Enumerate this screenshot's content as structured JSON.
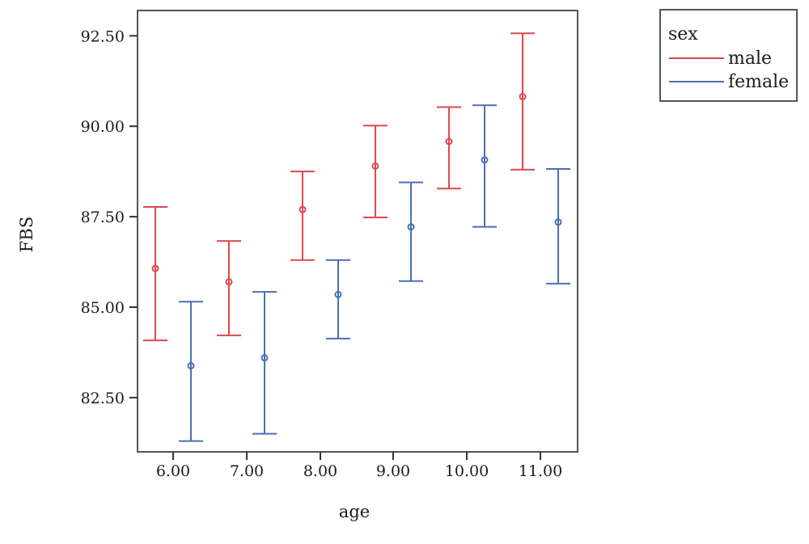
{
  "chart_data": {
    "type": "errorbar",
    "xlabel": "age",
    "ylabel": "FBS",
    "ylim": [
      81.0,
      93.2
    ],
    "categories": [
      "6.00",
      "7.00",
      "8.00",
      "9.00",
      "10.00",
      "11.00"
    ],
    "y_ticks": [
      "92.50",
      "90.00",
      "87.50",
      "85.00",
      "82.50"
    ],
    "y_tick_values": [
      92.5,
      90.0,
      87.5,
      85.0,
      82.5
    ],
    "legend": {
      "title": "sex",
      "placement": "top-right, outside plot"
    },
    "series": [
      {
        "name": "male",
        "color": "#e0474c",
        "points": [
          {
            "x": "6.00",
            "mean": 86.07,
            "lower": 84.08,
            "upper": 87.77
          },
          {
            "x": "7.00",
            "mean": 85.7,
            "lower": 84.22,
            "upper": 86.83
          },
          {
            "x": "8.00",
            "mean": 87.7,
            "lower": 86.3,
            "upper": 88.75
          },
          {
            "x": "9.00",
            "mean": 88.9,
            "lower": 87.48,
            "upper": 90.02
          },
          {
            "x": "10.00",
            "mean": 89.58,
            "lower": 88.28,
            "upper": 90.53
          },
          {
            "x": "11.00",
            "mean": 90.82,
            "lower": 88.8,
            "upper": 92.57
          }
        ]
      },
      {
        "name": "female",
        "color": "#4a6fb5",
        "points": [
          {
            "x": "6.00",
            "mean": 83.38,
            "lower": 81.3,
            "upper": 85.15
          },
          {
            "x": "7.00",
            "mean": 83.6,
            "lower": 81.5,
            "upper": 85.42
          },
          {
            "x": "8.00",
            "mean": 85.35,
            "lower": 84.13,
            "upper": 86.3
          },
          {
            "x": "9.00",
            "mean": 87.22,
            "lower": 85.72,
            "upper": 88.45
          },
          {
            "x": "10.00",
            "mean": 89.07,
            "lower": 87.22,
            "upper": 90.58
          },
          {
            "x": "11.00",
            "mean": 87.35,
            "lower": 85.65,
            "upper": 88.82
          }
        ]
      }
    ],
    "grid": false
  }
}
